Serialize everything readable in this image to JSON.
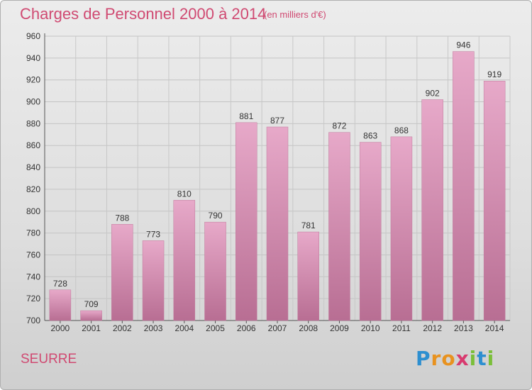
{
  "chart_data": {
    "type": "bar",
    "title": "Charges de Personnel 2000 à 2014",
    "subtitle": "(en milliers d'€)",
    "categories": [
      "2000",
      "2001",
      "2002",
      "2003",
      "2004",
      "2005",
      "2006",
      "2007",
      "2008",
      "2009",
      "2010",
      "2011",
      "2012",
      "2013",
      "2014"
    ],
    "values": [
      728,
      709,
      788,
      773,
      810,
      790,
      881,
      877,
      781,
      872,
      863,
      868,
      902,
      946,
      919
    ],
    "ylim": [
      700,
      960
    ],
    "yticks": [
      700,
      720,
      740,
      760,
      780,
      800,
      820,
      840,
      860,
      880,
      900,
      920,
      940,
      960
    ],
    "grid": true,
    "bar_color": "#d98fb4"
  },
  "footer": {
    "city": "SEURRE",
    "logo_letters": [
      {
        "ch": "P",
        "color": "#2d8fd0"
      },
      {
        "ch": "r",
        "color": "#e8921f"
      },
      {
        "ch": "o",
        "color": "#e8921f"
      },
      {
        "ch": "x",
        "color": "#d83a6f"
      },
      {
        "ch": "i",
        "color": "#7bbf3a"
      },
      {
        "ch": "t",
        "color": "#2d8fd0"
      },
      {
        "ch": "i",
        "color": "#7bbf3a"
      }
    ]
  }
}
